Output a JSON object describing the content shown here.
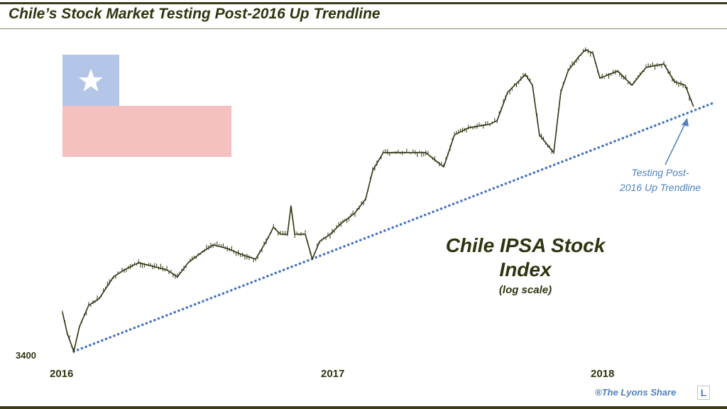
{
  "title": "Chile’s Stock Market Testing Post-2016 Up Trendline",
  "chart_data": {
    "type": "line",
    "title": "Chile IPSA Stock Index",
    "subtitle": "(log scale)",
    "yscale": "log",
    "ylim": [
      3400,
      5900
    ],
    "y_tick_labels": [
      "3400"
    ],
    "x_tick_labels": [
      "2016",
      "2017",
      "2018"
    ],
    "series": [
      {
        "name": "Chile IPSA",
        "x": [
          2016.0,
          2016.018,
          2016.042,
          2016.063,
          2016.097,
          2016.137,
          2016.189,
          2016.229,
          2016.282,
          2016.334,
          2016.387,
          2016.426,
          2016.466,
          2016.518,
          2016.558,
          2016.611,
          2016.676,
          2016.716,
          2016.755,
          2016.782,
          2016.808,
          2016.834,
          2016.847,
          2016.861,
          2016.9,
          2016.926,
          2016.953,
          2016.992,
          2017.032,
          2017.084,
          2017.124,
          2017.15,
          2017.189,
          2017.268,
          2017.347,
          2017.413,
          2017.453,
          2017.505,
          2017.584,
          2017.611,
          2017.65,
          2017.716,
          2017.742,
          2017.768,
          2017.821,
          2017.847,
          2017.874,
          2017.913,
          2017.939,
          2017.966,
          2017.992,
          2018.058,
          2018.111,
          2018.163,
          2018.229,
          2018.268,
          2018.308,
          2018.339
        ],
        "values": [
          3672,
          3533,
          3422,
          3579,
          3719,
          3767,
          3915,
          3965,
          4017,
          3991,
          3965,
          3915,
          4017,
          4095,
          4148,
          4121,
          4068,
          4043,
          4174,
          4283,
          4228,
          4228,
          4451,
          4228,
          4228,
          4043,
          4174,
          4228,
          4310,
          4394,
          4508,
          4745,
          4900,
          4900,
          4900,
          4775,
          5059,
          5125,
          5158,
          5191,
          5464,
          5642,
          5534,
          5059,
          4900,
          5464,
          5678,
          5826,
          5901,
          5863,
          5606,
          5678,
          5534,
          5715,
          5751,
          5570,
          5534,
          5325
        ]
      }
    ],
    "trendline": {
      "style": "dotted",
      "color": "#4472c4",
      "x": [
        2016.042,
        2018.413
      ],
      "values": [
        3422,
        5360
      ]
    },
    "annotations": {
      "arrow_label_1": "Testing Post-",
      "arrow_label_2": "2016 Up Trendline",
      "index_line1": "Chile IPSA Stock",
      "index_line2": "Index"
    }
  },
  "flag": {
    "blue": "#b4c6e7",
    "red": "#f4c0c0",
    "star": "#ffffff"
  },
  "credit": "®The Lyons Share",
  "logo_letter": "L",
  "colors": {
    "line": "#2f3410",
    "accent": "#4f81bd"
  }
}
